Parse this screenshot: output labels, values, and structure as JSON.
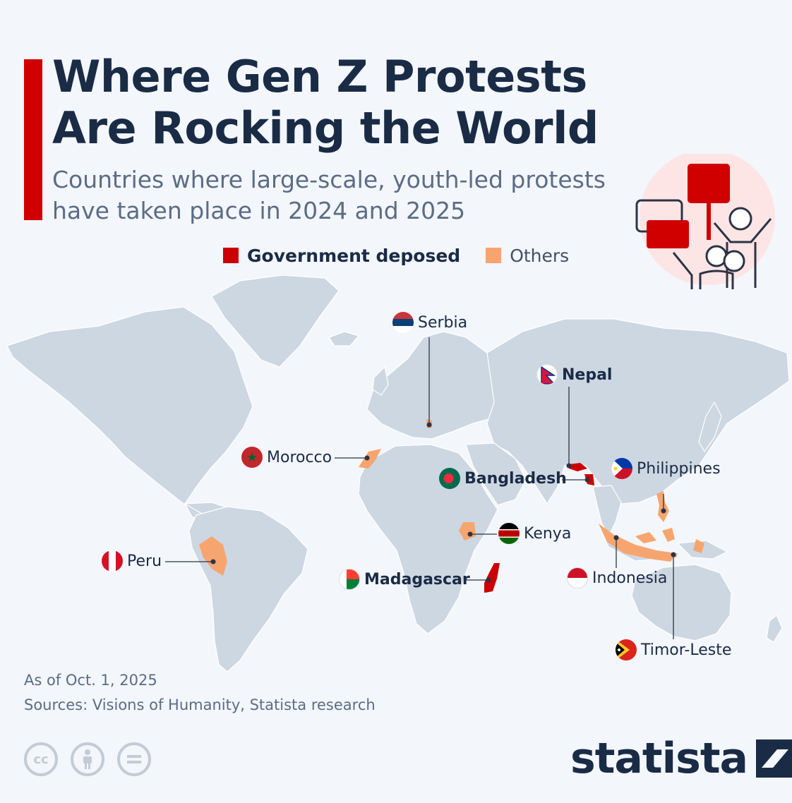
{
  "header": {
    "title_line1": "Where Gen Z Protests",
    "title_line2": "Are Rocking the World",
    "subtitle_line1": "Countries where large-scale, youth-led protests",
    "subtitle_line2": "have taken place in 2024 and 2025"
  },
  "legend": [
    {
      "label": "Government deposed",
      "color": "#cc0000"
    },
    {
      "label": "Others",
      "color": "#f7a56f"
    }
  ],
  "countries": [
    {
      "name": "Serbia",
      "category": "Others",
      "flag_icon": "serbia-flag-icon"
    },
    {
      "name": "Nepal",
      "category": "Government deposed",
      "flag_icon": "nepal-flag-icon"
    },
    {
      "name": "Morocco",
      "category": "Others",
      "flag_icon": "morocco-flag-icon"
    },
    {
      "name": "Philippines",
      "category": "Others",
      "flag_icon": "philippines-flag-icon"
    },
    {
      "name": "Bangladesh",
      "category": "Government deposed",
      "flag_icon": "bangladesh-flag-icon"
    },
    {
      "name": "Kenya",
      "category": "Others",
      "flag_icon": "kenya-flag-icon"
    },
    {
      "name": "Peru",
      "category": "Others",
      "flag_icon": "peru-flag-icon"
    },
    {
      "name": "Madagascar",
      "category": "Government deposed",
      "flag_icon": "madagascar-flag-icon"
    },
    {
      "name": "Indonesia",
      "category": "Others",
      "flag_icon": "indonesia-flag-icon"
    },
    {
      "name": "Timor-Leste",
      "category": "Others",
      "flag_icon": "timor-leste-flag-icon"
    }
  ],
  "footer": {
    "as_of": "As of Oct. 1, 2025",
    "sources": "Sources: Visions of Humanity, Statista research",
    "license_icons": [
      "cc-icon",
      "attribution-icon",
      "no-derivatives-icon"
    ],
    "cc_text": "cc",
    "brand": "statista"
  },
  "colors": {
    "accent": "#d10000",
    "deposed": "#cc0000",
    "others": "#f7a56f",
    "land": "#cdd7e2",
    "ocean": "#f3f6fb",
    "title": "#1a2b46"
  }
}
